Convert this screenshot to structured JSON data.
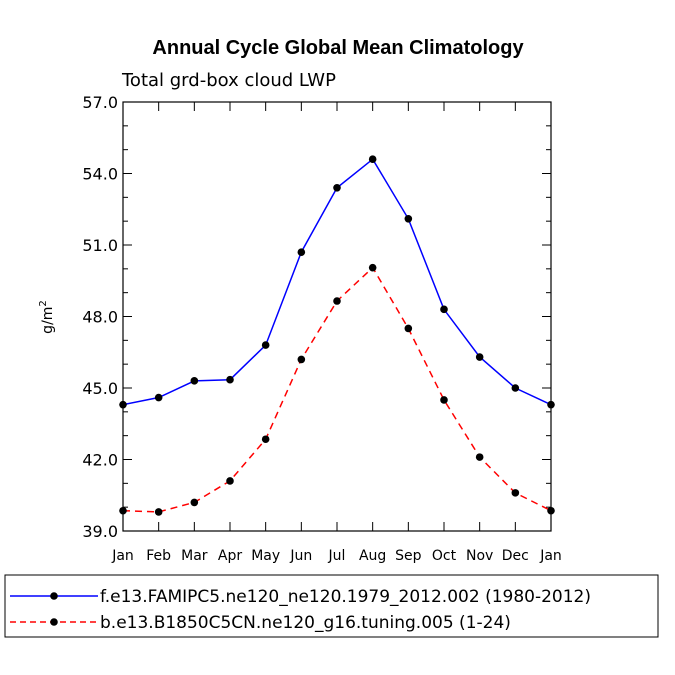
{
  "chart_data": {
    "type": "line",
    "title": "Annual Cycle Global Mean Climatology",
    "subtitle": "Total grd-box cloud LWP",
    "ylabel": "g/m",
    "ylabel_superscript": "2",
    "xlabel": "",
    "ylim": [
      39.0,
      57.0
    ],
    "yticks": [
      "39.0",
      "42.0",
      "45.0",
      "48.0",
      "51.0",
      "54.0",
      "57.0"
    ],
    "categories": [
      "Jan",
      "Feb",
      "Mar",
      "Apr",
      "May",
      "Jun",
      "Jul",
      "Aug",
      "Sep",
      "Oct",
      "Nov",
      "Dec",
      "Jan"
    ],
    "series": [
      {
        "name": "f.e13.FAMIPC5.ne120_ne120.1979_2012.002 (1980-2012)",
        "color": "#0000ff",
        "dash": "solid",
        "values": [
          44.3,
          44.6,
          45.3,
          45.35,
          46.8,
          50.7,
          53.4,
          54.6,
          52.1,
          48.3,
          46.3,
          45.0,
          44.3
        ]
      },
      {
        "name": "b.e13.B1850C5CN.ne120_g16.tuning.005 (1-24)",
        "color": "#ff0000",
        "dash": "dashed",
        "values": [
          39.85,
          39.8,
          40.2,
          41.1,
          42.85,
          46.2,
          48.65,
          50.05,
          47.5,
          44.5,
          42.1,
          40.6,
          39.85
        ]
      }
    ],
    "grid": false,
    "legend": "bottom"
  }
}
